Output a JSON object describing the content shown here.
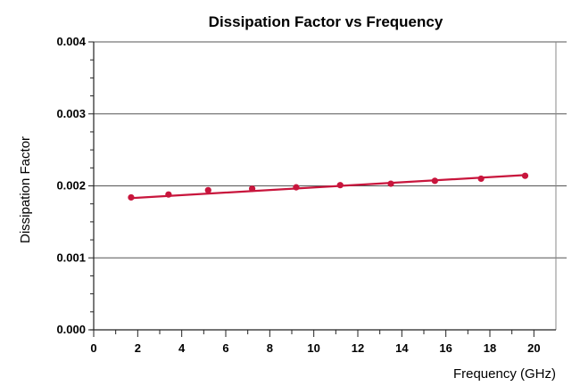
{
  "chart_data": {
    "type": "scatter",
    "title": "Dissipation Factor vs Frequency",
    "xlabel": "Frequency (GHz)",
    "ylabel": "Dissipation Factor",
    "xlim": [
      0,
      21
    ],
    "ylim": [
      0,
      0.004
    ],
    "x_ticks": [
      0,
      2,
      4,
      6,
      8,
      10,
      12,
      14,
      16,
      18,
      20
    ],
    "x_tick_labels": [
      "0",
      "2",
      "4",
      "6",
      "8",
      "10",
      "12",
      "14",
      "16",
      "18",
      "20"
    ],
    "y_ticks": [
      0,
      0.001,
      0.002,
      0.003,
      0.004
    ],
    "y_tick_labels": [
      "0.000",
      "0.001",
      "0.002",
      "0.003",
      "0.004"
    ],
    "grid": {
      "horizontal": true,
      "vertical": false
    },
    "legend": "none",
    "series": [
      {
        "points": [
          {
            "x": 1.7,
            "y": 0.00184
          },
          {
            "x": 3.4,
            "y": 0.00188
          },
          {
            "x": 5.2,
            "y": 0.00194
          },
          {
            "x": 7.2,
            "y": 0.00196
          },
          {
            "x": 9.2,
            "y": 0.00198
          },
          {
            "x": 11.2,
            "y": 0.00201
          },
          {
            "x": 13.5,
            "y": 0.00203
          },
          {
            "x": 15.5,
            "y": 0.00207
          },
          {
            "x": 17.6,
            "y": 0.0021
          },
          {
            "x": 19.6,
            "y": 0.00214
          }
        ],
        "trendline": {
          "x": [
            1.7,
            19.6
          ],
          "y": [
            0.00183,
            0.00215
          ]
        },
        "color": "#c8153c"
      }
    ]
  }
}
